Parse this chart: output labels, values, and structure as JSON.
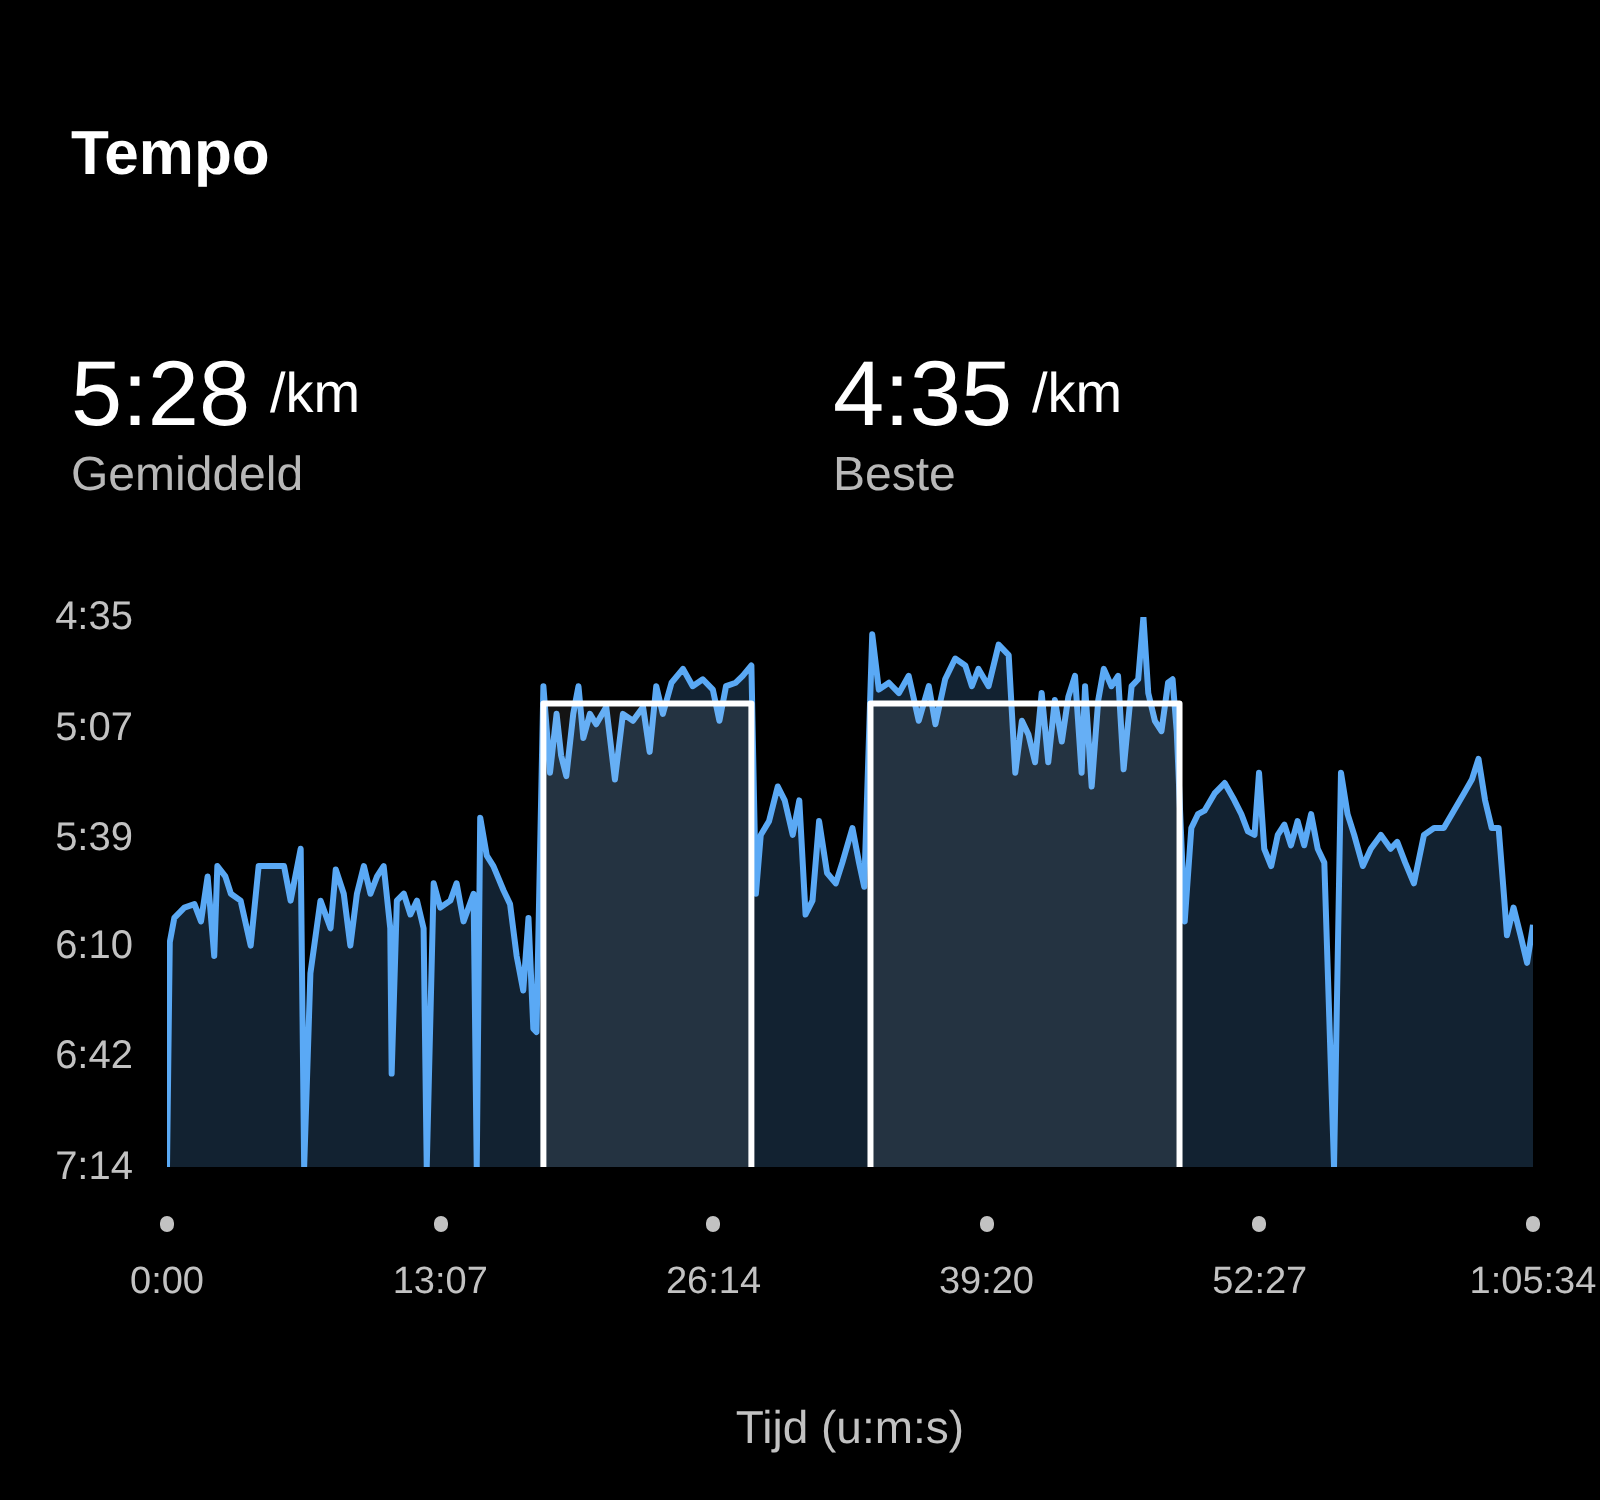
{
  "chart_data": {
    "type": "area",
    "title": "Tempo",
    "xlabel": "Tijd (u:m:s)",
    "annotations": [
      "5:28 /km",
      "Gemiddeld",
      "4:35 /km",
      "Beste"
    ],
    "xlim": [
      0,
      3934
    ],
    "xticks": [
      {
        "value": 0,
        "label": "0:00"
      },
      {
        "value": 787,
        "label": "13:07"
      },
      {
        "value": 1574,
        "label": "26:14"
      },
      {
        "value": 2360,
        "label": "39:20"
      },
      {
        "value": 3147,
        "label": "52:27"
      },
      {
        "value": 3934,
        "label": "1:05:34"
      }
    ],
    "ylim": [
      434,
      275
    ],
    "yticks": [
      {
        "value": 275,
        "label": "4:35"
      },
      {
        "value": 307,
        "label": "5:07"
      },
      {
        "value": 339,
        "label": "5:39"
      },
      {
        "value": 370,
        "label": "6:10"
      },
      {
        "value": 402,
        "label": "6:42"
      },
      {
        "value": 434,
        "label": "7:14"
      }
    ],
    "series": [
      {
        "color": "#5aa9f5",
        "x": [
          0,
          8,
          21,
          50,
          79,
          98,
          117,
          136,
          145,
          168,
          184,
          212,
          241,
          264,
          299,
          337,
          356,
          385,
          395,
          413,
          442,
          471,
          486,
          509,
          528,
          547,
          567,
          586,
          605,
          624,
          643,
          647,
          662,
          682,
          701,
          720,
          739,
          748,
          768,
          787,
          816,
          834,
          854,
          883,
          892,
          902,
          921,
          940,
          969,
          988,
          1007,
          1026,
          1041,
          1055,
          1064,
          1084,
          1103,
          1122,
          1135,
          1150,
          1170,
          1185,
          1199,
          1218,
          1236,
          1265,
          1290,
          1313,
          1342,
          1371,
          1390,
          1409,
          1428,
          1453,
          1486,
          1514,
          1543,
          1572,
          1591,
          1610,
          1638,
          1658,
          1683,
          1696,
          1710,
          1734,
          1759,
          1779,
          1802,
          1821,
          1839,
          1859,
          1878,
          1901,
          1926,
          1945,
          1974,
          1993,
          2008,
          2031,
          2050,
          2079,
          2108,
          2136,
          2165,
          2194,
          2213,
          2241,
          2270,
          2299,
          2318,
          2337,
          2366,
          2395,
          2424,
          2443,
          2462,
          2481,
          2500,
          2519,
          2538,
          2557,
          2577,
          2596,
          2615,
          2634,
          2644,
          2663,
          2682,
          2698,
          2720,
          2739,
          2755,
          2778,
          2797,
          2812,
          2826,
          2845,
          2864,
          2883,
          2896,
          2908,
          2931,
          2950,
          2969,
          2988,
          3017,
          3046,
          3074,
          3094,
          3113,
          3132,
          3145,
          3160,
          3180,
          3199,
          3218,
          3237,
          3256,
          3275,
          3295,
          3314,
          3333,
          3361,
          3381,
          3400,
          3419,
          3444,
          3467,
          3496,
          3524,
          3543,
          3566,
          3591,
          3620,
          3649,
          3677,
          3706,
          3735,
          3758,
          3777,
          3796,
          3815,
          3835,
          3850,
          3859,
          3878,
          3898,
          3917,
          3934
        ],
        "values": [
          434,
          369,
          362,
          359,
          358,
          363,
          350,
          373,
          347,
          350,
          355,
          357,
          370,
          347,
          347,
          347,
          357,
          342,
          434,
          378,
          357,
          365,
          348,
          355,
          370,
          355,
          347,
          355,
          350,
          347,
          365,
          407,
          357,
          355,
          361,
          357,
          365,
          434,
          352,
          359,
          357,
          352,
          363,
          355,
          434,
          333,
          344,
          347,
          354,
          358,
          373,
          383,
          362,
          394,
          395,
          295,
          320,
          303,
          315,
          321,
          303,
          295,
          310,
          303,
          306,
          301,
          322,
          303,
          305,
          301,
          314,
          295,
          303,
          294,
          290,
          295,
          293,
          296,
          305,
          295,
          294,
          292,
          289,
          355,
          338,
          334,
          324,
          328,
          338,
          328,
          361,
          357,
          334,
          349,
          352,
          346,
          336,
          346,
          353,
          280,
          296,
          294,
          297,
          292,
          305,
          295,
          306,
          293,
          287,
          289,
          295,
          290,
          295,
          283,
          286,
          320,
          305,
          309,
          317,
          297,
          317,
          299,
          311,
          298,
          292,
          320,
          295,
          324,
          299,
          290,
          295,
          292,
          319,
          295,
          293,
          275,
          297,
          305,
          308,
          294,
          293,
          308,
          363,
          336,
          332,
          331,
          326,
          323,
          328,
          332,
          337,
          338,
          320,
          342,
          347,
          338,
          335,
          341,
          334,
          341,
          332,
          342,
          346,
          434,
          320,
          332,
          338,
          347,
          342,
          338,
          342,
          340,
          346,
          352,
          338,
          336,
          336,
          331,
          326,
          322,
          316,
          328,
          336,
          336,
          355,
          367,
          359,
          367,
          375,
          364
        ]
      },
      {
        "color": "#ffffff",
        "x": [
          1084,
          1084,
          1683,
          1683
        ],
        "values": [
          434,
          300,
          300,
          434
        ]
      },
      {
        "color": "#ffffff",
        "x": [
          2026,
          2026,
          2916,
          2916
        ],
        "values": [
          434,
          300,
          300,
          434
        ]
      }
    ]
  }
}
